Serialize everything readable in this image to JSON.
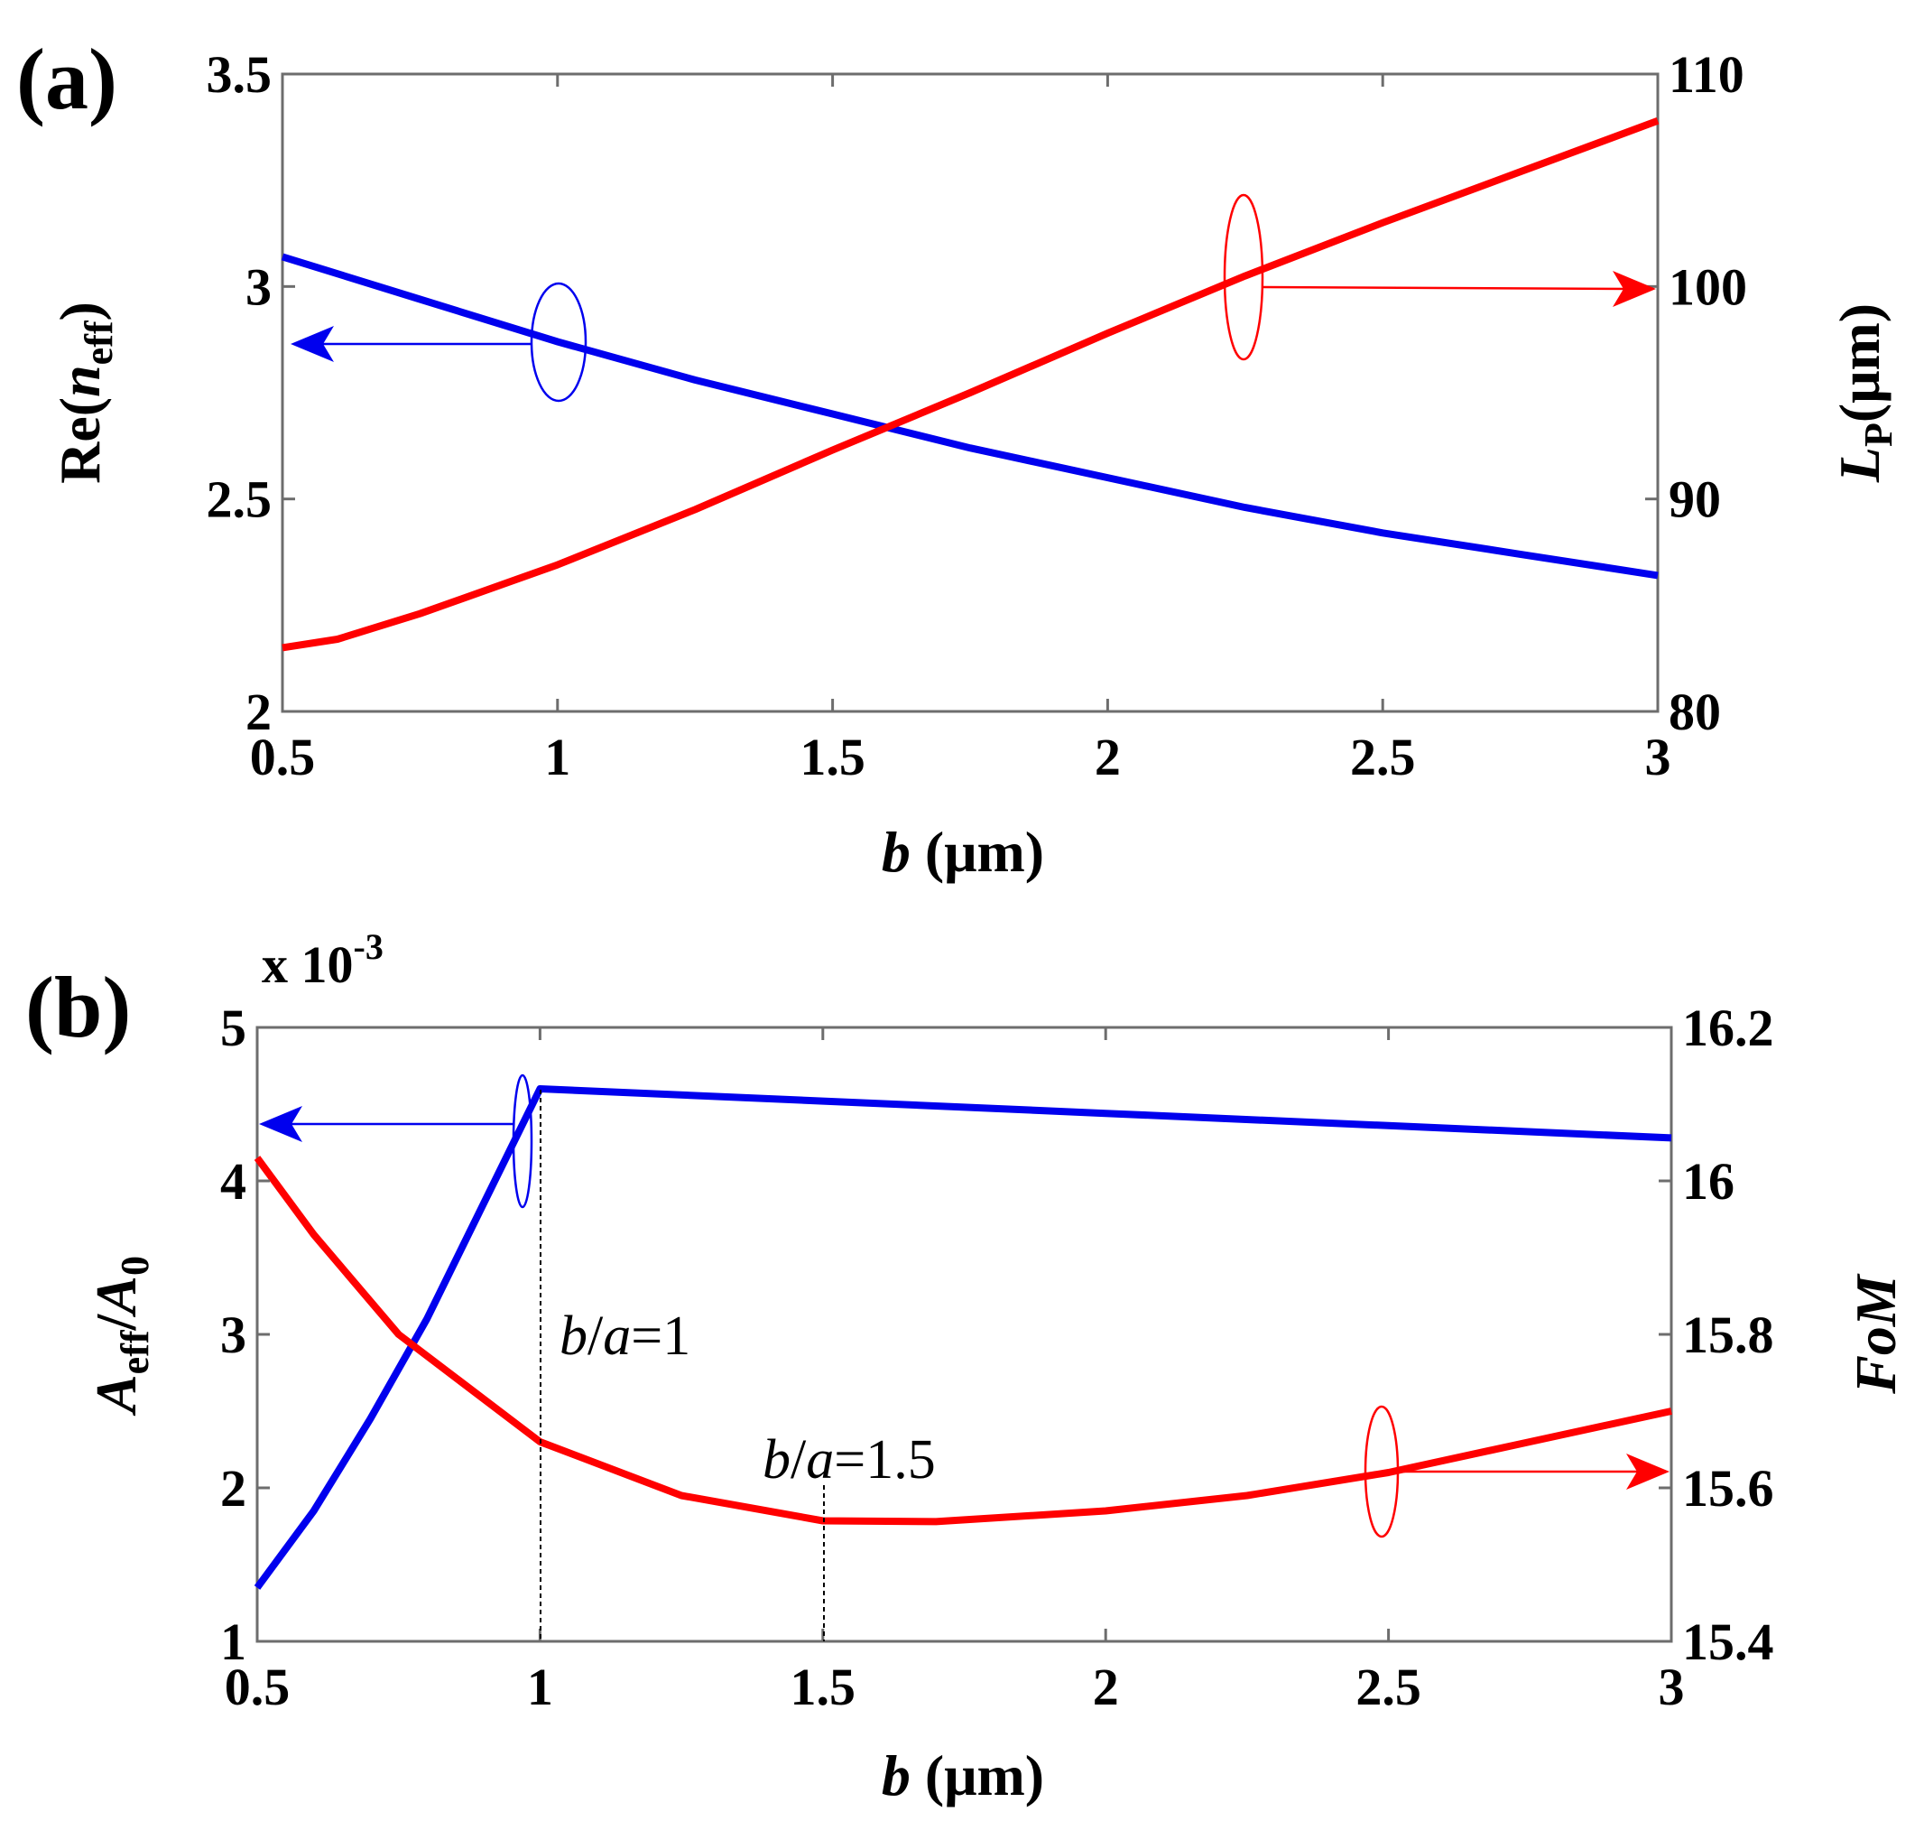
{
  "colors": {
    "blue": "#0000ee",
    "red": "#ff0000",
    "axis": "#6d6d6d"
  },
  "chart_data": [
    {
      "panel_label": "(a)",
      "type": "line",
      "x_ticks": [
        "0.5",
        "1",
        "1.5",
        "2",
        "2.5",
        "3"
      ],
      "xlim": [
        0.5,
        3
      ],
      "ylim_left": [
        2,
        3.5
      ],
      "y_left_ticks": [
        "2",
        "2.5",
        "3",
        "3.5"
      ],
      "ylim_right": [
        80,
        110
      ],
      "y_right_ticks": [
        "80",
        "90",
        "100",
        "110"
      ],
      "xlabel": {
        "var": "b",
        "unit": " (μm)"
      },
      "ylabel_left": {
        "pre": "Re(",
        "var": "n",
        "sub": "eff",
        "post": ")"
      },
      "ylabel_right": {
        "var": "L",
        "sub": "P",
        "post": "(μm)"
      },
      "series": [
        {
          "name": "Re(n_eff)",
          "axis": "left",
          "color": "blue",
          "x": [
            0.5,
            0.75,
            1.0,
            1.25,
            1.5,
            1.75,
            2.0,
            2.25,
            2.5,
            2.75,
            3.0
          ],
          "y": [
            3.07,
            2.97,
            2.87,
            2.78,
            2.7,
            2.62,
            2.55,
            2.48,
            2.42,
            2.37,
            2.32
          ]
        },
        {
          "name": "L_P",
          "axis": "right",
          "color": "red",
          "x": [
            0.5,
            0.6,
            0.75,
            1.0,
            1.25,
            1.5,
            1.75,
            2.0,
            2.25,
            2.5,
            2.75,
            3.0
          ],
          "y": [
            83.0,
            83.4,
            84.6,
            86.9,
            89.5,
            92.3,
            95.0,
            97.8,
            100.5,
            103.0,
            105.4,
            107.8
          ]
        }
      ]
    },
    {
      "panel_label": "(b)",
      "type": "line",
      "x_ticks": [
        "0.5",
        "1",
        "1.5",
        "2",
        "2.5",
        "3"
      ],
      "xlim": [
        0.5,
        3
      ],
      "ylim_left": [
        1,
        5
      ],
      "y_left_ticks": [
        "1",
        "2",
        "3",
        "4",
        "5"
      ],
      "ylim_right": [
        15.4,
        16.2
      ],
      "y_right_ticks": [
        "15.4",
        "15.6",
        "15.8",
        "16",
        "16.2"
      ],
      "exponent_label": {
        "base": "x 10",
        "exp": "-3"
      },
      "xlabel": {
        "var": "b",
        "unit": " (μm)"
      },
      "ylabel_left": {
        "var1": "A",
        "sub1": "eff",
        "mid": "/",
        "var2": "A",
        "sub2": "0"
      },
      "ylabel_right": {
        "var": "FoM"
      },
      "annotations": [
        {
          "text_var1": "b",
          "text_mid": "/",
          "text_var2": "a",
          "text_val": "=1"
        },
        {
          "text_var1": "b",
          "text_mid": "/",
          "text_var2": "a",
          "text_val": "=1.5"
        }
      ],
      "series": [
        {
          "name": "A_eff/A_0",
          "axis": "left",
          "color": "blue",
          "x": [
            0.5,
            0.6,
            0.7,
            0.8,
            0.9,
            1.0,
            1.5,
            2.0,
            2.5,
            3.0
          ],
          "y": [
            1.35,
            1.85,
            2.45,
            3.1,
            3.85,
            4.6,
            4.52,
            4.44,
            4.36,
            4.28
          ]
        },
        {
          "name": "FoM",
          "axis": "right",
          "color": "red",
          "x": [
            0.5,
            0.6,
            0.75,
            1.0,
            1.25,
            1.5,
            1.7,
            2.0,
            2.25,
            2.5,
            2.75,
            3.0
          ],
          "y": [
            16.03,
            15.93,
            15.8,
            15.66,
            15.59,
            15.557,
            15.556,
            15.57,
            15.59,
            15.62,
            15.66,
            15.7
          ]
        }
      ]
    }
  ]
}
